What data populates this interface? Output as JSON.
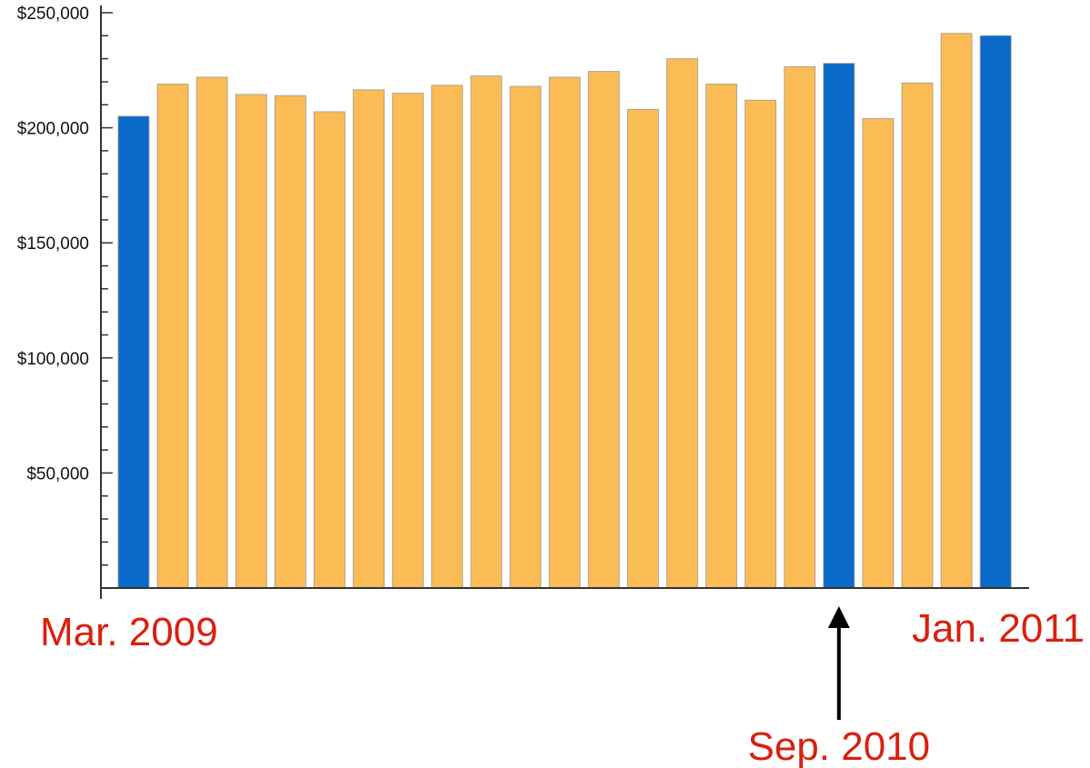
{
  "chart_data": {
    "type": "bar",
    "title": "",
    "xlabel": "",
    "ylabel": "",
    "ylim": [
      0,
      250000
    ],
    "y_ticks": [
      50000,
      100000,
      150000,
      200000,
      250000
    ],
    "y_tick_labels": [
      "$50,000",
      "$100,000",
      "$150,000",
      "$200,000",
      "$250,000"
    ],
    "y_minor_step": 10000,
    "grid": false,
    "values": [
      205000,
      219000,
      222000,
      214500,
      214000,
      207000,
      216500,
      215000,
      218500,
      222500,
      218000,
      222000,
      224500,
      208000,
      230000,
      219000,
      212000,
      226500,
      228000,
      204000,
      219500,
      241000,
      240000
    ],
    "highlighted_indices": [
      0,
      18,
      22
    ],
    "colors": {
      "default_bar": "#fbbc55",
      "highlight_bar": "#0b6ac9",
      "annotation_text": "#d9200f",
      "arrow": "#000000"
    },
    "annotations": [
      {
        "text": "Mar. 2009",
        "bar_index": 0
      },
      {
        "text": "Sep. 2010",
        "bar_index": 18,
        "arrow": true
      },
      {
        "text": "Jan. 2011",
        "bar_index": 22
      }
    ]
  }
}
